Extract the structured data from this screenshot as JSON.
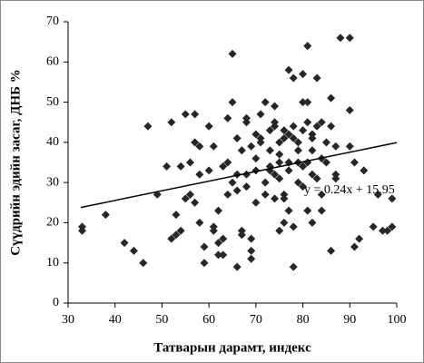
{
  "chart_data": {
    "type": "scatter",
    "xlabel": "Татварын дарамт, индекс",
    "ylabel": "Сүүдрийн эдийн засаг, ДНБ %",
    "xlim": [
      30,
      100
    ],
    "xticks": [
      30,
      40,
      50,
      60,
      70,
      80,
      90,
      100
    ],
    "ylim": [
      0,
      70
    ],
    "yticks": [
      0,
      10,
      20,
      30,
      40,
      50,
      60,
      70
    ],
    "color": "#262626",
    "x": [
      33,
      33,
      38,
      42,
      44,
      46,
      47,
      49,
      51,
      52,
      52,
      53,
      54,
      54,
      55,
      55,
      56,
      56,
      57,
      57,
      58,
      58,
      58,
      59,
      59,
      60,
      61,
      61,
      62,
      62,
      62,
      63,
      63,
      63,
      64,
      64,
      64,
      65,
      65,
      65,
      66,
      66,
      66,
      66,
      67,
      67,
      67,
      68,
      68,
      68,
      68,
      69,
      69,
      69,
      69,
      70,
      70,
      70,
      70,
      71,
      71,
      71,
      72,
      72,
      72,
      73,
      73,
      73,
      73,
      74,
      74,
      74,
      74,
      75,
      75,
      75,
      75,
      75,
      76,
      76,
      76,
      76,
      76,
      77,
      77,
      77,
      77,
      77,
      78,
      78,
      78,
      78,
      78,
      79,
      79,
      79,
      79,
      80,
      80,
      80,
      80,
      80,
      81,
      81,
      81,
      81,
      81,
      82,
      82,
      82,
      82,
      83,
      83,
      83,
      84,
      84,
      84,
      85,
      85,
      86,
      86,
      86,
      87,
      87,
      87,
      88,
      90,
      90,
      90,
      91,
      91,
      92,
      93,
      95,
      96,
      97,
      98,
      99,
      99,
      60,
      61,
      57,
      53,
      74,
      82,
      84
    ],
    "values": [
      18,
      19,
      22,
      15,
      13,
      10,
      44,
      27,
      34,
      45,
      16,
      22,
      18,
      34,
      47,
      26,
      27,
      35,
      47,
      40,
      39,
      32,
      20,
      10,
      14,
      44,
      19,
      18,
      15,
      12,
      23,
      16,
      34,
      12,
      35,
      27,
      46,
      50,
      62,
      30,
      32,
      9,
      41,
      28,
      18,
      17,
      38,
      45,
      29,
      46,
      32,
      39,
      16,
      11,
      13,
      36,
      42,
      25,
      33,
      40,
      41,
      47,
      27,
      30,
      50,
      38,
      43,
      33,
      34,
      26,
      32,
      44,
      49,
      31,
      35,
      37,
      40,
      18,
      41,
      43,
      27,
      20,
      26,
      58,
      42,
      33,
      35,
      23,
      9,
      44,
      41,
      56,
      19,
      40,
      35,
      38,
      30,
      57,
      50,
      43,
      34,
      29,
      64,
      45,
      50,
      35,
      23,
      41,
      38,
      42,
      32,
      56,
      44,
      31,
      45,
      36,
      27,
      40,
      35,
      13,
      44,
      51,
      39,
      31,
      32,
      66,
      66,
      48,
      39,
      14,
      35,
      16,
      33,
      19,
      27,
      18,
      18,
      19,
      26,
      33,
      39,
      25,
      17,
      45,
      20,
      23
    ],
    "trendline": {
      "slope": 0.24,
      "intercept": 15.95,
      "x_range": [
        32.7,
        100
      ],
      "label": "y = 0.24x + 15.95"
    }
  }
}
